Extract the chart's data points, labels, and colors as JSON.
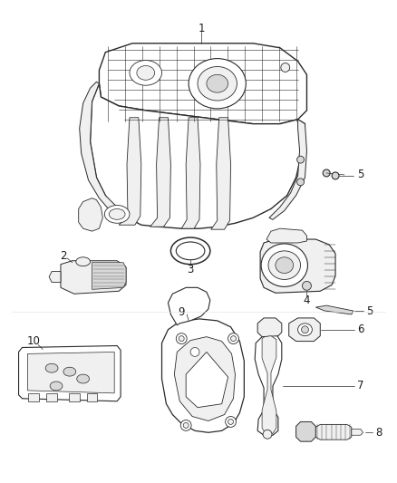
{
  "bg_color": "#ffffff",
  "line_color": "#2a2a2a",
  "label_color": "#1a1a1a",
  "fig_width": 4.38,
  "fig_height": 5.33,
  "dpi": 100,
  "label_fontsize": 8.5,
  "leader_lw": 0.5,
  "part_lw": 0.7,
  "fill_main": "#f0f0f0",
  "fill_dark": "#d8d8d8",
  "fill_white": "#ffffff"
}
